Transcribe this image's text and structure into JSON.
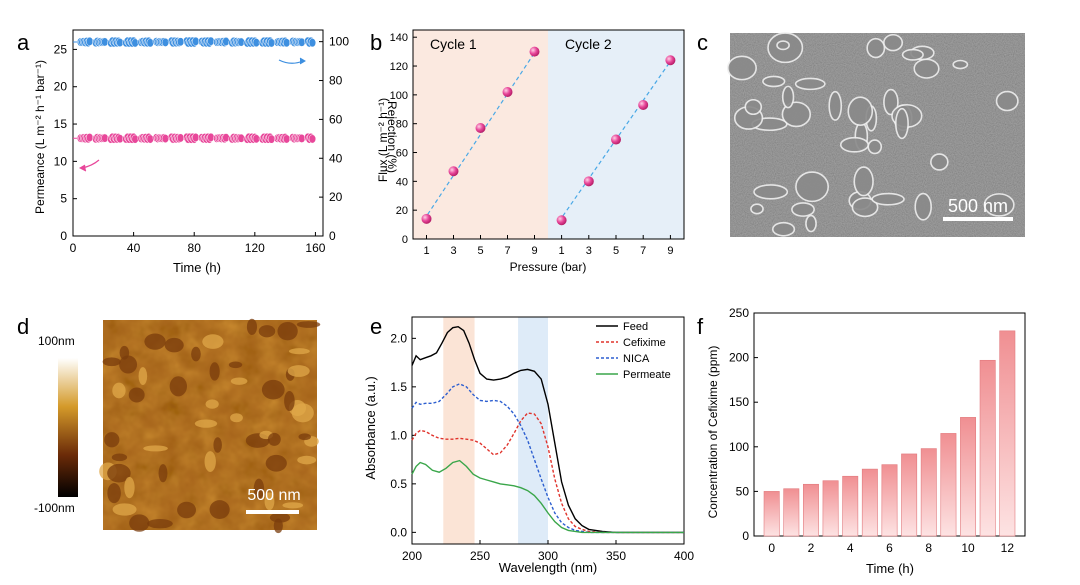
{
  "panels": [
    {
      "label": "a"
    },
    {
      "label": "b"
    },
    {
      "label": "c"
    },
    {
      "label": "d"
    },
    {
      "label": "e"
    },
    {
      "label": "f"
    }
  ],
  "sem": {
    "scale_label": "500 nm"
  },
  "afm": {
    "scale_label": "500 nm",
    "colorbar_top": "100nm",
    "colorbar_bottom": "-100nm"
  },
  "chart_data": [
    {
      "id": "a",
      "type": "scatter",
      "xlabel": "Time (h)",
      "ylabel": "Permeance (L m⁻² h⁻¹ bar⁻¹)",
      "y2label": "Rejection (%)",
      "xlim": [
        0,
        165
      ],
      "ylim": [
        0,
        27.6
      ],
      "y2lim": [
        0,
        106
      ],
      "xticks": [
        0,
        40,
        80,
        120,
        160
      ],
      "yticks": [
        0,
        5,
        10,
        15,
        20,
        25
      ],
      "y2ticks": [
        0,
        20,
        40,
        60,
        80,
        100
      ],
      "series": [
        {
          "axis": "right",
          "color": "#3d8fe0",
          "values_range": [
            0,
            160
          ],
          "value": 99.8
        },
        {
          "axis": "left",
          "color": "#e8479a",
          "values_range": [
            0,
            160
          ],
          "value": 13.1
        }
      ]
    },
    {
      "id": "b",
      "type": "scatter",
      "xlabel": "Pressure (bar)",
      "ylabel": "Flux (L m⁻² h⁻¹)",
      "ylim": [
        0,
        145
      ],
      "yticks": [
        0,
        20,
        40,
        60,
        80,
        100,
        120,
        140
      ],
      "series": [
        {
          "name": "Cycle 1",
          "x": [
            1,
            3,
            5,
            7,
            9
          ],
          "y": [
            14,
            47,
            77,
            102,
            130
          ],
          "shade": "#fbe9e0"
        },
        {
          "name": "Cycle 2",
          "x": [
            1,
            3,
            5,
            7,
            9
          ],
          "y": [
            13,
            40,
            69,
            93,
            124
          ],
          "shade": "#e6eff8"
        }
      ],
      "xtick_labels": [
        "1",
        "3",
        "5",
        "7",
        "9",
        "1",
        "3",
        "5",
        "7",
        "9"
      ]
    },
    {
      "id": "e",
      "type": "line",
      "xlabel": "Wavelength (nm)",
      "ylabel": "Absorbance (a.u.)",
      "xlim": [
        200,
        400
      ],
      "ylim": [
        -0.12,
        2.22
      ],
      "xticks": [
        200,
        250,
        300,
        350,
        400
      ],
      "yticks": [
        0.0,
        0.5,
        1.0,
        1.5,
        2.0
      ],
      "series": [
        {
          "name": "Feed",
          "color": "#000000",
          "dash": "",
          "x": [
            200,
            203,
            206,
            210,
            214,
            218,
            222,
            226,
            230,
            234,
            238,
            242,
            246,
            250,
            255,
            260,
            265,
            270,
            275,
            280,
            285,
            290,
            295,
            300,
            305,
            310,
            315,
            320,
            325,
            330,
            340,
            350,
            360,
            380,
            400
          ],
          "y": [
            1.72,
            1.82,
            1.78,
            1.8,
            1.82,
            1.85,
            1.95,
            2.06,
            2.11,
            2.12,
            2.08,
            1.95,
            1.78,
            1.64,
            1.58,
            1.57,
            1.58,
            1.6,
            1.64,
            1.67,
            1.68,
            1.66,
            1.58,
            1.32,
            0.92,
            0.52,
            0.28,
            0.14,
            0.07,
            0.03,
            0.01,
            0.0,
            0.0,
            0.0,
            0.0
          ]
        },
        {
          "name": "Cefixime",
          "color": "#e0332c",
          "dash": "3,2",
          "x": [
            200,
            203,
            206,
            210,
            215,
            220,
            225,
            230,
            235,
            240,
            245,
            250,
            255,
            260,
            265,
            270,
            275,
            280,
            285,
            290,
            295,
            300,
            305,
            310,
            315,
            320,
            325,
            330,
            340,
            350,
            360,
            380,
            400
          ],
          "y": [
            0.95,
            1.02,
            1.05,
            1.04,
            1.0,
            0.97,
            0.96,
            0.96,
            0.97,
            0.96,
            0.95,
            0.92,
            0.86,
            0.8,
            0.82,
            0.9,
            1.02,
            1.15,
            1.23,
            1.22,
            1.12,
            0.88,
            0.55,
            0.3,
            0.14,
            0.06,
            0.03,
            0.01,
            0.0,
            0.0,
            0.0,
            0.0,
            0.0
          ]
        },
        {
          "name": "NICA",
          "color": "#2d5fd0",
          "dash": "3,2",
          "x": [
            200,
            203,
            206,
            210,
            215,
            220,
            225,
            230,
            235,
            240,
            245,
            250,
            255,
            260,
            265,
            270,
            275,
            280,
            285,
            290,
            295,
            300,
            305,
            310,
            315,
            320,
            325,
            330,
            340,
            350,
            360,
            380,
            400
          ],
          "y": [
            1.28,
            1.34,
            1.32,
            1.33,
            1.33,
            1.35,
            1.42,
            1.5,
            1.53,
            1.5,
            1.42,
            1.36,
            1.35,
            1.36,
            1.35,
            1.3,
            1.22,
            1.1,
            0.95,
            0.75,
            0.55,
            0.36,
            0.2,
            0.1,
            0.05,
            0.02,
            0.01,
            0.0,
            0.0,
            0.0,
            0.0,
            0.0,
            0.0
          ]
        },
        {
          "name": "Permeate",
          "color": "#3aa64a",
          "dash": "",
          "x": [
            200,
            203,
            206,
            210,
            215,
            220,
            225,
            230,
            235,
            240,
            245,
            250,
            255,
            260,
            265,
            270,
            275,
            280,
            285,
            290,
            295,
            300,
            305,
            310,
            315,
            320,
            325,
            330,
            340,
            350,
            360,
            380,
            400
          ],
          "y": [
            0.6,
            0.68,
            0.72,
            0.7,
            0.64,
            0.62,
            0.66,
            0.72,
            0.74,
            0.68,
            0.6,
            0.56,
            0.54,
            0.52,
            0.5,
            0.49,
            0.48,
            0.46,
            0.43,
            0.38,
            0.3,
            0.2,
            0.11,
            0.05,
            0.02,
            0.01,
            0.0,
            0.0,
            0.0,
            0.0,
            0.0,
            0.0,
            0.0
          ]
        }
      ],
      "shaded_bands": [
        {
          "x0": 223,
          "x1": 246,
          "color": "#fbe4d6"
        },
        {
          "x0": 278,
          "x1": 300,
          "color": "#deebf8"
        }
      ],
      "legend": "top-right"
    },
    {
      "id": "f",
      "type": "bar",
      "xlabel": "Time (h)",
      "ylabel": "Concentration of Cefixime (ppm)",
      "ylim": [
        0,
        250
      ],
      "yticks": [
        0,
        50,
        100,
        150,
        200,
        250
      ],
      "xticks": [
        0,
        2,
        4,
        6,
        8,
        10,
        12
      ],
      "categories": [
        0,
        1,
        2,
        3,
        4,
        5,
        6,
        7,
        8,
        9,
        10,
        11,
        12
      ],
      "values": [
        50,
        53,
        58,
        62,
        67,
        75,
        80,
        92,
        98,
        115,
        133,
        197,
        230
      ]
    }
  ]
}
